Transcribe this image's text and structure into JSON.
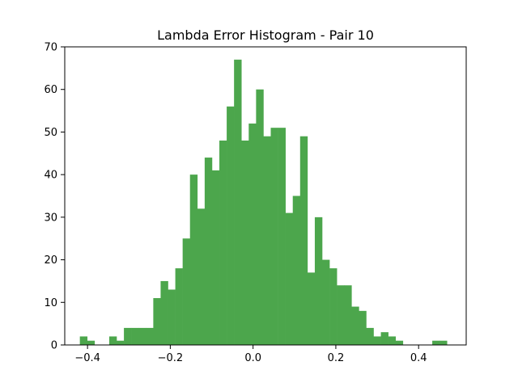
{
  "chart_data": {
    "type": "bar",
    "title": "Lambda Error Histogram - Pair 10",
    "xlabel": "",
    "ylabel": "",
    "bar_color": "#4ca64c",
    "xlim": [
      -0.455,
      0.515
    ],
    "ylim": [
      0,
      70
    ],
    "x_ticks": [
      -0.4,
      -0.2,
      0.0,
      0.2,
      0.4
    ],
    "x_tick_labels": [
      "−0.4",
      "−0.2",
      "0.0",
      "0.2",
      "0.4"
    ],
    "y_ticks": [
      0,
      10,
      20,
      30,
      40,
      50,
      60,
      70
    ],
    "y_tick_labels": [
      "0",
      "10",
      "20",
      "30",
      "40",
      "50",
      "60",
      "70"
    ],
    "grid": false,
    "bin_start": -0.4185,
    "bin_width": 0.01774,
    "values": [
      2,
      1,
      0,
      0,
      2,
      1,
      4,
      4,
      4,
      4,
      11,
      15,
      13,
      18,
      25,
      40,
      32,
      44,
      41,
      48,
      56,
      67,
      48,
      52,
      60,
      49,
      51,
      51,
      31,
      35,
      49,
      17,
      30,
      20,
      18,
      14,
      14,
      9,
      8,
      4,
      2,
      3,
      2,
      1,
      0,
      0,
      0,
      0,
      1,
      1
    ]
  }
}
